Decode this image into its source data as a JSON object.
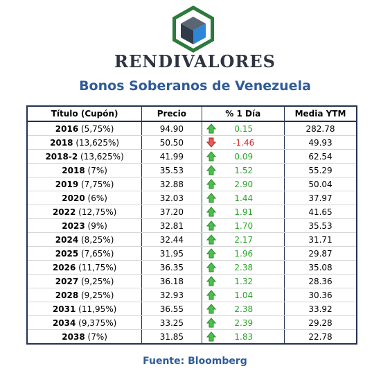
{
  "brand": {
    "name": "RENDIVALORES"
  },
  "title": "Bonos Soberanos de Venezuela",
  "table": {
    "headers": [
      "Título (Cupón)",
      "Precio",
      "% 1 Día",
      "Media YTM"
    ],
    "rows": [
      {
        "year": "2016",
        "coupon": "(5,75%)",
        "precio": "94.90",
        "cambio": "0.15",
        "dir": "up",
        "ytm": "282.78"
      },
      {
        "year": "2018",
        "coupon": "(13,625%)",
        "precio": "50.50",
        "cambio": "-1.46",
        "dir": "down",
        "ytm": "49.93"
      },
      {
        "year": "2018-2",
        "coupon": "(13,625%)",
        "precio": "41.99",
        "cambio": "0.09",
        "dir": "up",
        "ytm": "62.54"
      },
      {
        "year": "2018",
        "coupon": "(7%)",
        "precio": "35.53",
        "cambio": "1.52",
        "dir": "up",
        "ytm": "55.29"
      },
      {
        "year": "2019",
        "coupon": "(7,75%)",
        "precio": "32.88",
        "cambio": "2.90",
        "dir": "up",
        "ytm": "50.04"
      },
      {
        "year": "2020",
        "coupon": "(6%)",
        "precio": "32.03",
        "cambio": "1.44",
        "dir": "up",
        "ytm": "37.97"
      },
      {
        "year": "2022",
        "coupon": "(12,75%)",
        "precio": "37.20",
        "cambio": "1.91",
        "dir": "up",
        "ytm": "41.65"
      },
      {
        "year": "2023",
        "coupon": "(9%)",
        "precio": "32.81",
        "cambio": "1.70",
        "dir": "up",
        "ytm": "35.53"
      },
      {
        "year": "2024",
        "coupon": "(8,25%)",
        "precio": "32.44",
        "cambio": "2.17",
        "dir": "up",
        "ytm": "31.71"
      },
      {
        "year": "2025",
        "coupon": "(7,65%)",
        "precio": "31.95",
        "cambio": "1.96",
        "dir": "up",
        "ytm": "29.87"
      },
      {
        "year": "2026",
        "coupon": "(11,75%)",
        "precio": "36.35",
        "cambio": "2.38",
        "dir": "up",
        "ytm": "35.08"
      },
      {
        "year": "2027",
        "coupon": "(9,25%)",
        "precio": "36.18",
        "cambio": "1.32",
        "dir": "up",
        "ytm": "28.36"
      },
      {
        "year": "2028",
        "coupon": "(9,25%)",
        "precio": "32.93",
        "cambio": "1.04",
        "dir": "up",
        "ytm": "30.36"
      },
      {
        "year": "2031",
        "coupon": "(11,95%)",
        "precio": "36.55",
        "cambio": "2.38",
        "dir": "up",
        "ytm": "33.92"
      },
      {
        "year": "2034",
        "coupon": "(9,375%)",
        "precio": "33.25",
        "cambio": "2.39",
        "dir": "up",
        "ytm": "29.28"
      },
      {
        "year": "2038",
        "coupon": "(7%)",
        "precio": "31.85",
        "cambio": "1.83",
        "dir": "up",
        "ytm": "22.78"
      }
    ]
  },
  "source": "Fuente: Bloomberg",
  "icons": {
    "logo": "cube-logo",
    "up": "arrow-up-icon",
    "down": "arrow-down-icon"
  },
  "colors": {
    "up": "#2aa52a",
    "down": "#d12b2b",
    "accent": "#2f5b9a",
    "border": "#23324f"
  }
}
